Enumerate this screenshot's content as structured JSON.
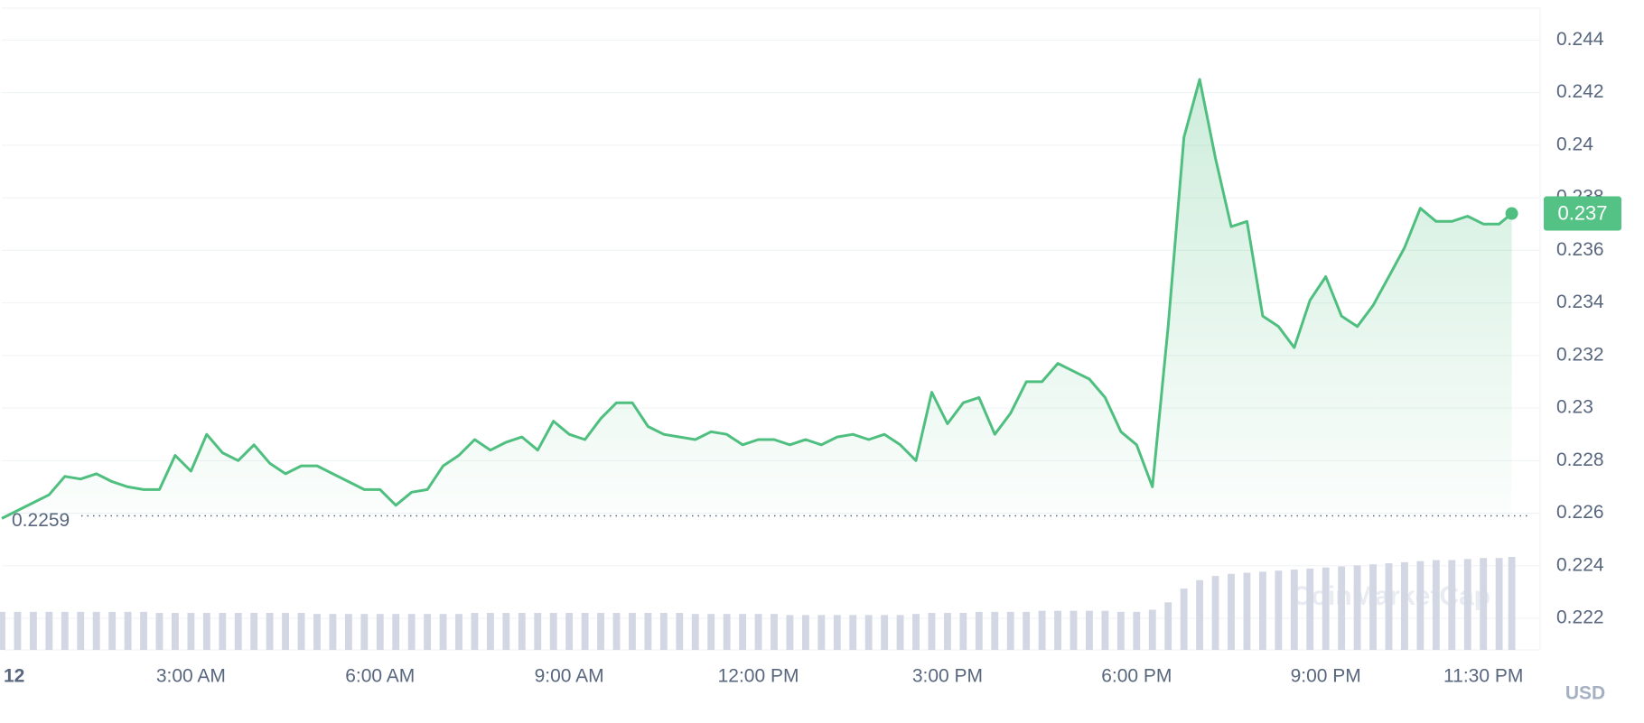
{
  "chart_data": {
    "type": "line",
    "x": [
      0,
      0.25,
      0.5,
      0.75,
      1,
      1.25,
      1.5,
      1.75,
      2,
      2.25,
      2.5,
      2.75,
      3,
      3.25,
      3.5,
      3.75,
      4,
      4.25,
      4.5,
      4.75,
      5,
      5.25,
      5.5,
      5.75,
      6,
      6.25,
      6.5,
      6.75,
      7,
      7.25,
      7.5,
      7.75,
      8,
      8.25,
      8.5,
      8.75,
      9,
      9.25,
      9.5,
      9.75,
      10,
      10.25,
      10.5,
      10.75,
      11,
      11.25,
      11.5,
      11.75,
      12,
      12.25,
      12.5,
      12.75,
      13,
      13.25,
      13.5,
      13.75,
      14,
      14.25,
      14.5,
      14.75,
      15,
      15.25,
      15.5,
      15.75,
      16,
      16.25,
      16.5,
      16.75,
      17,
      17.25,
      17.5,
      17.75,
      18,
      18.25,
      18.5,
      18.75,
      19,
      19.25,
      19.5,
      19.75,
      20,
      20.25,
      20.5,
      20.75,
      21,
      21.25,
      21.5,
      21.75,
      22,
      22.25,
      22.5,
      22.75,
      23,
      23.25,
      23.5,
      23.75,
      23.95
    ],
    "series": [
      {
        "color": "#4fbf7f",
        "values": [
          0.2258,
          0.2261,
          0.2264,
          0.2267,
          0.2274,
          0.2273,
          0.2275,
          0.2272,
          0.227,
          0.2269,
          0.2269,
          0.2282,
          0.2276,
          0.229,
          0.2283,
          0.228,
          0.2286,
          0.2279,
          0.2275,
          0.2278,
          0.2278,
          0.2275,
          0.2272,
          0.2269,
          0.2269,
          0.2263,
          0.2268,
          0.2269,
          0.2278,
          0.2282,
          0.2288,
          0.2284,
          0.2287,
          0.2289,
          0.2284,
          0.2295,
          0.229,
          0.2288,
          0.2296,
          0.2302,
          0.2302,
          0.2293,
          0.229,
          0.2289,
          0.2288,
          0.2291,
          0.229,
          0.2286,
          0.2288,
          0.2288,
          0.2286,
          0.2288,
          0.2286,
          0.2289,
          0.229,
          0.2288,
          0.229,
          0.2286,
          0.228,
          0.2306,
          0.2294,
          0.2302,
          0.2304,
          0.229,
          0.2298,
          0.231,
          0.231,
          0.2317,
          0.2314,
          0.2311,
          0.2304,
          0.2291,
          0.2286,
          0.227,
          0.2331,
          0.2403,
          0.2425,
          0.2395,
          0.2369,
          0.2371,
          0.2335,
          0.2331,
          0.2323,
          0.2341,
          0.235,
          0.2335,
          0.2331,
          0.2339,
          0.235,
          0.2361,
          0.2376,
          0.2371,
          0.2371,
          0.2373,
          0.237,
          0.237,
          0.2374
        ]
      }
    ],
    "volume": [
      36,
      36,
      36,
      36,
      36,
      36,
      36,
      36,
      36,
      36,
      35,
      35,
      35,
      35,
      35,
      35,
      35,
      35,
      35,
      35,
      34,
      34,
      34,
      34,
      34,
      34,
      34,
      34,
      34,
      34,
      35,
      35,
      35,
      35,
      35,
      35,
      35,
      35,
      35,
      35,
      35,
      35,
      35,
      35,
      34,
      34,
      34,
      34,
      34,
      34,
      33,
      33,
      33,
      33,
      33,
      33,
      33,
      33,
      34,
      35,
      35,
      35,
      36,
      36,
      36,
      36,
      37,
      37,
      37,
      37,
      37,
      36,
      36,
      38,
      45,
      58,
      66,
      70,
      72,
      73,
      74,
      75,
      76,
      77,
      78,
      79,
      80,
      81,
      82,
      83,
      84,
      85,
      85,
      86,
      87,
      87,
      88
    ],
    "xlim": [
      0,
      24.4
    ],
    "xticks": [
      {
        "value": 0,
        "label": "12"
      },
      {
        "value": 3,
        "label": "3:00 AM"
      },
      {
        "value": 6,
        "label": "6:00 AM"
      },
      {
        "value": 9,
        "label": "9:00 AM"
      },
      {
        "value": 12,
        "label": "12:00 PM"
      },
      {
        "value": 15,
        "label": "3:00 PM"
      },
      {
        "value": 18,
        "label": "6:00 PM"
      },
      {
        "value": 21,
        "label": "9:00 PM"
      },
      {
        "value": 23.5,
        "label": "11:30 PM"
      }
    ],
    "ylim": [
      0.2208,
      0.2452
    ],
    "yticks": [
      0.222,
      0.224,
      0.226,
      0.228,
      0.23,
      0.232,
      0.234,
      0.236,
      0.238,
      0.24,
      0.242,
      0.244
    ],
    "grid": true,
    "reference_line": {
      "value": 0.2259,
      "label": "0.2259"
    },
    "current_price_label": "0.237",
    "y_unit": "USD",
    "watermark": "CoinMarketCap"
  }
}
